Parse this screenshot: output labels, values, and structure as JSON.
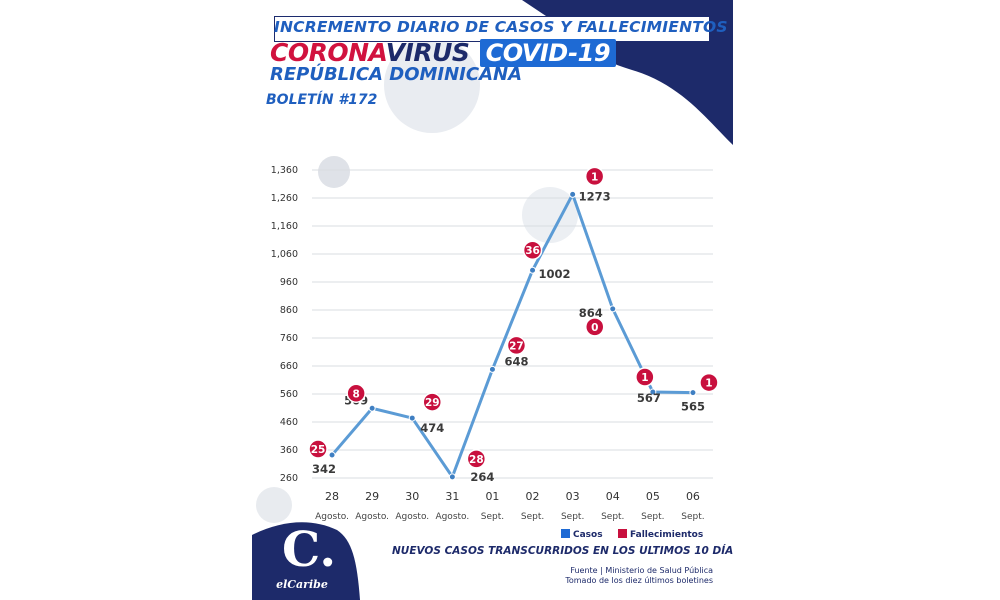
{
  "header": {
    "title": "INCREMENTO DIARIO DE CASOS Y FALLECIMIENTOS",
    "corona": "CORONA",
    "virus": "VIRUS",
    "covid": "COVID-19",
    "country": "REPÚBLICA DOMINICANA",
    "bulletin": "BOLETÍN #172"
  },
  "footer": {
    "subtitle": "NUEVOS CASOS TRANSCURRIDOS EN LOS ULTIMOS 10 DÍAS",
    "source_line1": "Fuente | Ministerio de Salud Pública",
    "source_line2": "Tomado de  los diez últimos boletines",
    "logo_text": "elCaribe",
    "logo_mark": "C."
  },
  "colors": {
    "navy": "#1d2a6a",
    "line": "#5b9bd5",
    "point": "#3f7fc2",
    "deaths_badge": "#c8103e",
    "legend_cases": "#1e6ad4",
    "legend_deaths": "#c8103e"
  },
  "chart_data": {
    "type": "line",
    "ylim": [
      260,
      1360
    ],
    "yticks": [
      260,
      360,
      460,
      560,
      660,
      760,
      860,
      960,
      1060,
      1160,
      1260,
      1360
    ],
    "ytick_labels": [
      "260",
      "360",
      "460",
      "560",
      "660",
      "760",
      "860",
      "960",
      "1,060",
      "1,160",
      "1,260",
      "1,360"
    ],
    "days": [
      "28",
      "29",
      "30",
      "31",
      "01",
      "02",
      "03",
      "04",
      "05",
      "06"
    ],
    "months": [
      "Agosto.",
      "Agosto.",
      "Agosto.",
      "Agosto.",
      "Sept.",
      "Sept.",
      "Sept.",
      "Sept.",
      "Sept.",
      "Sept."
    ],
    "series": [
      {
        "name": "Casos",
        "values": [
          342,
          509,
          474,
          264,
          648,
          1002,
          1273,
          864,
          567,
          565
        ]
      },
      {
        "name": "Fallecimientos",
        "values": [
          25,
          8,
          29,
          28,
          27,
          36,
          1,
          0,
          1,
          1
        ]
      }
    ],
    "legend": [
      "Casos",
      "Fallecimientos"
    ],
    "legend_position": "bottom-right",
    "grid": true
  }
}
